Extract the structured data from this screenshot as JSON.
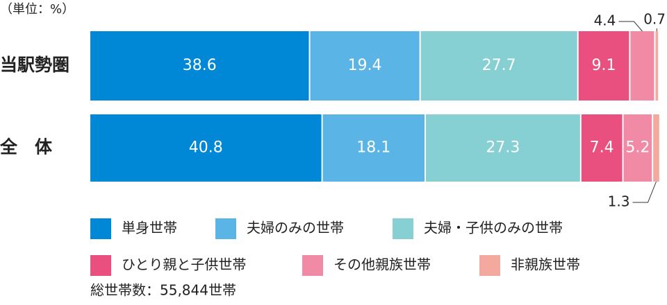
{
  "chart_data": {
    "type": "stacked-bar-horizontal",
    "unit_label": "（単位：%）",
    "categories": [
      "当駅勢圏",
      "全　体"
    ],
    "xlim": [
      0,
      100
    ],
    "series": [
      {
        "name": "単身世帯",
        "color": "#0088d6",
        "values": [
          38.6,
          40.8
        ]
      },
      {
        "name": "夫婦のみの世帯",
        "color": "#5ab4e5",
        "values": [
          19.4,
          18.1
        ]
      },
      {
        "name": "夫婦・子供のみの世帯",
        "color": "#86cfd3",
        "values": [
          27.7,
          27.3
        ]
      },
      {
        "name": "ひとり親と子供世帯",
        "color": "#e9507f",
        "values": [
          9.1,
          7.4
        ]
      },
      {
        "name": "その他親族世帯",
        "color": "#f08aa5",
        "values": [
          4.4,
          5.2
        ]
      },
      {
        "name": "非親族世帯",
        "color": "#f4a99e",
        "values": [
          0.7,
          1.3
        ]
      }
    ],
    "note": "総世帯数：55,844世帯"
  }
}
